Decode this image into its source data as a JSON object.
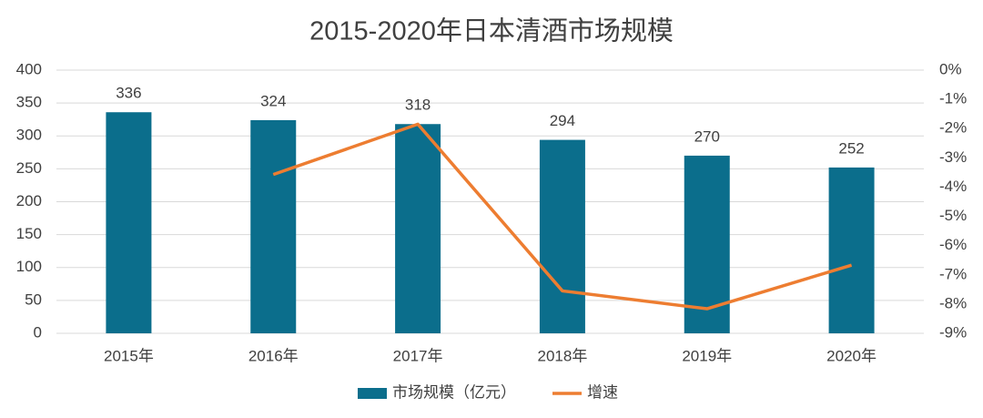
{
  "chart_data": {
    "type": "bar",
    "title": "2015-2020年日本清酒市场规模",
    "categories": [
      "2015年",
      "2016年",
      "2017年",
      "2018年",
      "2019年",
      "2020年"
    ],
    "series": [
      {
        "name": "市场规模（亿元）",
        "type": "bar",
        "color": "#0b6e8c",
        "values": [
          336,
          324,
          318,
          294,
          270,
          252
        ]
      },
      {
        "name": "增速",
        "type": "line",
        "axis": "y2",
        "color": "#ed7d31",
        "values": [
          null,
          -3.57,
          -1.85,
          -7.55,
          -8.16,
          -6.67
        ]
      }
    ],
    "ylim": [
      0,
      400
    ],
    "yticks": [
      0,
      50,
      100,
      150,
      200,
      250,
      300,
      350,
      400
    ],
    "y2lim": [
      -9,
      0
    ],
    "y2ticks": [
      {
        "value": 0,
        "label": "0%"
      },
      {
        "value": -1,
        "label": "-1%"
      },
      {
        "value": -2,
        "label": "-2%"
      },
      {
        "value": -3,
        "label": "-3%"
      },
      {
        "value": -4,
        "label": "-4%"
      },
      {
        "value": -5,
        "label": "-5%"
      },
      {
        "value": -6,
        "label": "-6%"
      },
      {
        "value": -7,
        "label": "-7%"
      },
      {
        "value": -8,
        "label": "-8%"
      },
      {
        "value": -9,
        "label": "-9%"
      }
    ],
    "grid": true,
    "legend": "bottom"
  }
}
